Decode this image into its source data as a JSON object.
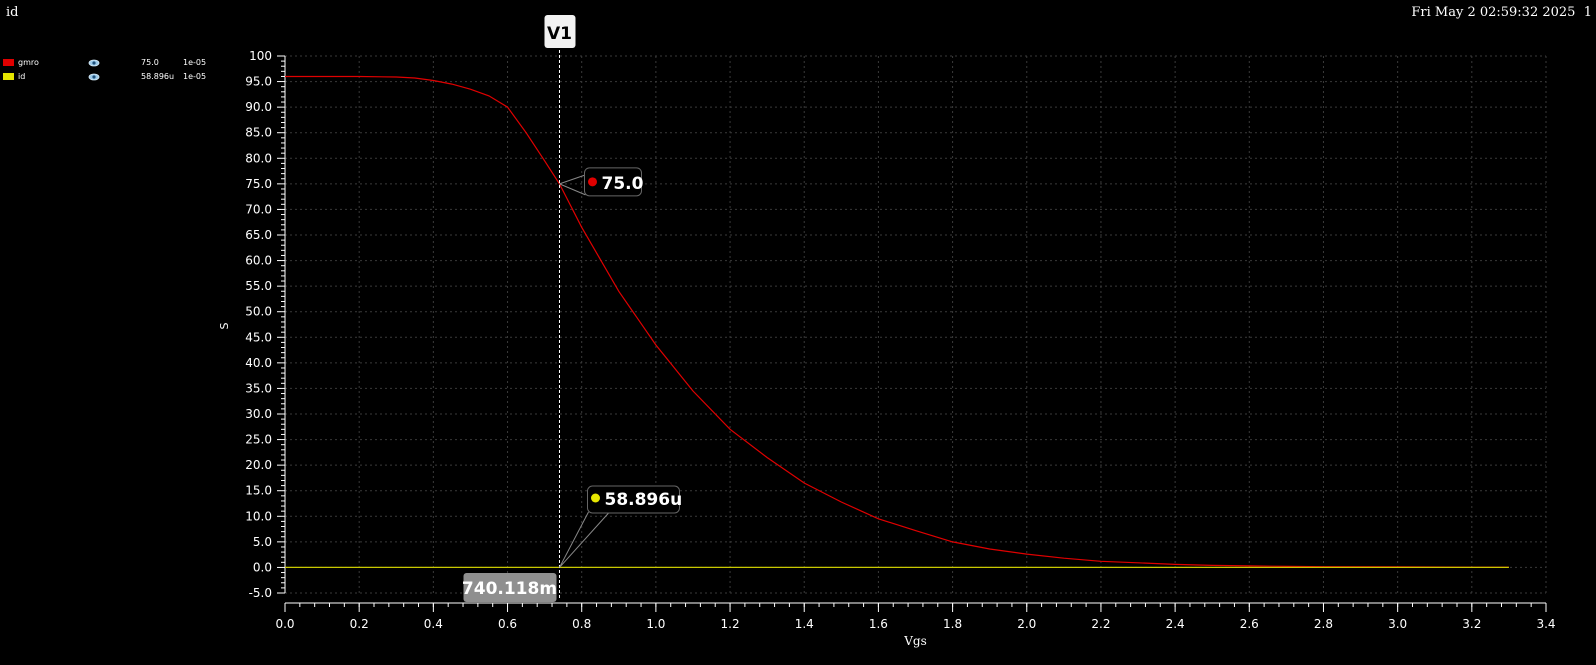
{
  "window": {
    "title": "id",
    "datetime": "Fri May 2 02:59:32 2025",
    "page_number": "1"
  },
  "legend": [
    {
      "name": "gmro",
      "color": "#e00000",
      "value": "75.0",
      "step": "1e-05"
    },
    {
      "name": "id",
      "color": "#e6e600",
      "value": "58.896u",
      "step": "1e-05"
    }
  ],
  "cursor": {
    "label": "V1",
    "x_value": 0.740118,
    "x_readout": "740.118m"
  },
  "markers": [
    {
      "series": "gmro",
      "label": "75.0",
      "color": "#e00000"
    },
    {
      "series": "id",
      "label": "58.896u",
      "color": "#e6e600"
    }
  ],
  "chart_data": {
    "type": "line",
    "xlabel": "Vgs",
    "ylabel": "S",
    "xlim": [
      0.0,
      3.4
    ],
    "ylim": [
      -5.0,
      100.0
    ],
    "x_ticks": [
      "0.0",
      "0.2",
      "0.4",
      "0.6",
      "0.8",
      "1.0",
      "1.2",
      "1.4",
      "1.6",
      "1.8",
      "2.0",
      "2.2",
      "2.4",
      "2.6",
      "2.8",
      "3.0",
      "3.2",
      "3.4"
    ],
    "y_ticks": [
      "100",
      "95.0",
      "90.0",
      "85.0",
      "80.0",
      "75.0",
      "70.0",
      "65.0",
      "60.0",
      "55.0",
      "50.0",
      "45.0",
      "40.0",
      "35.0",
      "30.0",
      "25.0",
      "20.0",
      "15.0",
      "10.0",
      "5.0",
      "0.0",
      "-5.0"
    ],
    "grid": true,
    "series": [
      {
        "name": "gmro",
        "color": "#e00000",
        "x": [
          0.0,
          0.1,
          0.2,
          0.3,
          0.35,
          0.4,
          0.45,
          0.5,
          0.55,
          0.6,
          0.65,
          0.7,
          0.74,
          0.8,
          0.9,
          1.0,
          1.1,
          1.2,
          1.3,
          1.4,
          1.5,
          1.6,
          1.7,
          1.8,
          1.9,
          2.0,
          2.1,
          2.2,
          2.3,
          2.4,
          2.5,
          2.6,
          2.7,
          2.8,
          3.0,
          3.2,
          3.3
        ],
        "y": [
          96.0,
          96.0,
          96.0,
          95.9,
          95.7,
          95.2,
          94.5,
          93.5,
          92.2,
          90.0,
          85.0,
          79.5,
          75.0,
          66.5,
          54.0,
          43.5,
          34.5,
          27.0,
          21.5,
          16.5,
          12.8,
          9.5,
          7.2,
          5.0,
          3.6,
          2.6,
          1.8,
          1.2,
          0.9,
          0.6,
          0.4,
          0.3,
          0.2,
          0.15,
          0.1,
          0.05,
          0.05
        ]
      },
      {
        "name": "id",
        "color": "#c8c800",
        "x": [
          0.0,
          3.3
        ],
        "y": [
          0.0,
          0.0
        ]
      }
    ]
  }
}
